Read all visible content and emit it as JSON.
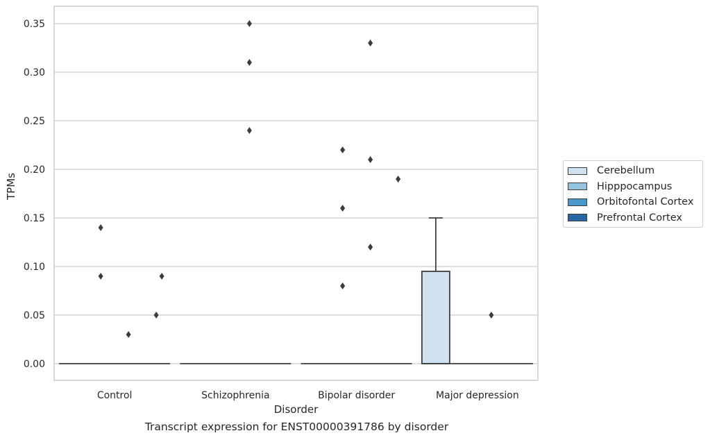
{
  "chart_data": {
    "type": "box",
    "title": "Transcript expression for ENST00000391786 by disorder",
    "xlabel": "Disorder",
    "ylabel": "TPMs",
    "ylim": [
      -0.017,
      0.367
    ],
    "yticks": [
      0.0,
      0.05,
      0.1,
      0.15,
      0.2,
      0.25,
      0.3,
      0.35
    ],
    "ytick_labels": [
      "0.00",
      "0.05",
      "0.10",
      "0.15",
      "0.20",
      "0.25",
      "0.30",
      "0.35"
    ],
    "grid": true,
    "legend_position": "right",
    "categories": [
      "Control",
      "Schizophrenia",
      "Bipolar disorder",
      "Major depression"
    ],
    "hue_order": [
      "Cerebellum",
      "Hipppocampus",
      "Orbitofontal Cortex",
      "Prefrontal Cortex"
    ],
    "colors": {
      "Cerebellum": "#d0e1f2",
      "Hipppocampus": "#94c4df",
      "Orbitofontal Cortex": "#4a98c9",
      "Prefrontal Cortex": "#2966a5",
      "edge": "#3d3d3d",
      "grid": "#cccccc"
    },
    "boxes": [
      {
        "category": "Control",
        "tissue": "Cerebellum",
        "q1": 0,
        "median": 0,
        "q3": 0,
        "whisker_low": 0,
        "whisker_high": 0,
        "outliers": []
      },
      {
        "category": "Control",
        "tissue": "Hipppocampus",
        "q1": 0,
        "median": 0,
        "q3": 0,
        "whisker_low": 0,
        "whisker_high": 0,
        "outliers": [
          0.14,
          0.09
        ]
      },
      {
        "category": "Control",
        "tissue": "Orbitofontal Cortex",
        "q1": 0,
        "median": 0,
        "q3": 0,
        "whisker_low": 0,
        "whisker_high": 0,
        "outliers": [
          0.03
        ]
      },
      {
        "category": "Control",
        "tissue": "Prefrontal Cortex",
        "q1": 0,
        "median": 0,
        "q3": 0,
        "whisker_low": 0,
        "whisker_high": 0,
        "outliers": [
          0.05
        ]
      },
      {
        "category": "Control",
        "tissue": "Prefrontal Cortex",
        "q1": 0,
        "median": 0,
        "q3": 0,
        "whisker_low": 0,
        "whisker_high": 0,
        "outliers": [
          0.09
        ],
        "position_offset": 0.2
      },
      {
        "category": "Schizophrenia",
        "tissue": "Cerebellum",
        "q1": 0,
        "median": 0,
        "q3": 0,
        "whisker_low": 0,
        "whisker_high": 0,
        "outliers": []
      },
      {
        "category": "Schizophrenia",
        "tissue": "Hipppocampus",
        "q1": 0,
        "median": 0,
        "q3": 0,
        "whisker_low": 0,
        "whisker_high": 0,
        "outliers": []
      },
      {
        "category": "Schizophrenia",
        "tissue": "Orbitofontal Cortex",
        "q1": 0,
        "median": 0,
        "q3": 0,
        "whisker_low": 0,
        "whisker_high": 0,
        "outliers": [
          0.35,
          0.31,
          0.24
        ]
      },
      {
        "category": "Schizophrenia",
        "tissue": "Prefrontal Cortex",
        "q1": 0,
        "median": 0,
        "q3": 0,
        "whisker_low": 0,
        "whisker_high": 0,
        "outliers": []
      },
      {
        "category": "Bipolar disorder",
        "tissue": "Cerebellum",
        "q1": 0,
        "median": 0,
        "q3": 0,
        "whisker_low": 0,
        "whisker_high": 0,
        "outliers": []
      },
      {
        "category": "Bipolar disorder",
        "tissue": "Hipppocampus",
        "q1": 0,
        "median": 0,
        "q3": 0,
        "whisker_low": 0,
        "whisker_high": 0,
        "outliers": [
          0.22,
          0.16,
          0.08
        ]
      },
      {
        "category": "Bipolar disorder",
        "tissue": "Orbitofontal Cortex",
        "q1": 0,
        "median": 0,
        "q3": 0,
        "whisker_low": 0,
        "whisker_high": 0,
        "outliers": [
          0.33,
          0.21,
          0.12
        ]
      },
      {
        "category": "Bipolar disorder",
        "tissue": "Prefrontal Cortex",
        "q1": 0,
        "median": 0,
        "q3": 0,
        "whisker_low": 0,
        "whisker_high": 0,
        "outliers": [
          0.19
        ]
      },
      {
        "category": "Major depression",
        "tissue": "Cerebellum",
        "q1": 0,
        "median": 0,
        "q3": 0.095,
        "whisker_low": 0,
        "whisker_high": 0.15,
        "outliers": []
      },
      {
        "category": "Major depression",
        "tissue": "Hipppocampus",
        "q1": 0,
        "median": 0,
        "q3": 0,
        "whisker_low": 0,
        "whisker_high": 0,
        "outliers": []
      },
      {
        "category": "Major depression",
        "tissue": "Orbitofontal Cortex",
        "q1": 0,
        "median": 0,
        "q3": 0,
        "whisker_low": 0,
        "whisker_high": 0,
        "outliers": [
          0.05
        ]
      },
      {
        "category": "Major depression",
        "tissue": "Prefrontal Cortex",
        "q1": 0,
        "median": 0,
        "q3": 0,
        "whisker_low": 0,
        "whisker_high": 0,
        "outliers": []
      }
    ]
  },
  "legend": {
    "items": [
      {
        "label": "Cerebellum",
        "color": "#d0e1f2"
      },
      {
        "label": "Hipppocampus",
        "color": "#94c4df"
      },
      {
        "label": "Orbitofontal Cortex",
        "color": "#4a98c9"
      },
      {
        "label": "Prefrontal Cortex",
        "color": "#2966a5"
      }
    ]
  }
}
